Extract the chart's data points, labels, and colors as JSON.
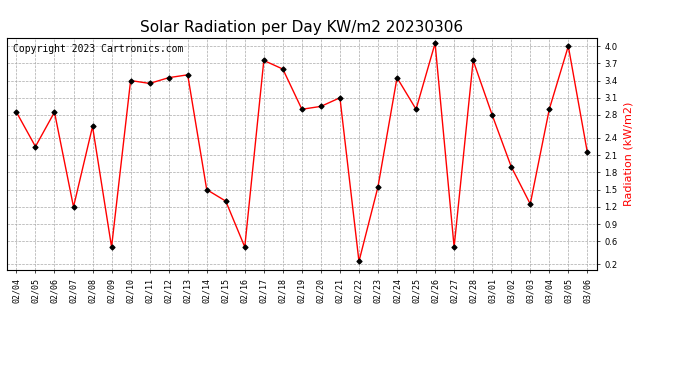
{
  "title": "Solar Radiation per Day KW/m2 20230306",
  "copyright": "Copyright 2023 Cartronics.com",
  "ylabel": "Radiation (kW/m2)",
  "dates": [
    "02/04",
    "02/05",
    "02/06",
    "02/07",
    "02/08",
    "02/09",
    "02/10",
    "02/11",
    "02/12",
    "02/13",
    "02/14",
    "02/15",
    "02/16",
    "02/17",
    "02/18",
    "02/19",
    "02/20",
    "02/21",
    "02/22",
    "02/23",
    "02/24",
    "02/25",
    "02/26",
    "02/27",
    "02/28",
    "03/01",
    "03/02",
    "03/03",
    "03/04",
    "03/05",
    "03/06"
  ],
  "values": [
    2.85,
    2.25,
    2.85,
    1.2,
    2.6,
    0.5,
    3.4,
    3.35,
    3.45,
    3.5,
    1.5,
    1.3,
    0.5,
    3.75,
    3.6,
    2.9,
    2.95,
    3.1,
    0.25,
    1.55,
    3.45,
    2.9,
    4.05,
    0.5,
    3.75,
    2.8,
    1.9,
    1.25,
    2.9,
    4.0,
    2.15
  ],
  "ylim": [
    0.1,
    4.15
  ],
  "yticks": [
    0.2,
    0.6,
    0.9,
    1.2,
    1.5,
    1.8,
    2.1,
    2.4,
    2.8,
    3.1,
    3.4,
    3.7,
    4.0
  ],
  "line_color": "red",
  "marker_color": "black",
  "title_fontsize": 11,
  "copyright_fontsize": 7,
  "ylabel_fontsize": 8,
  "tick_fontsize": 6,
  "background_color": "white",
  "grid_color": "#aaaaaa",
  "copyright_color": "black",
  "ylabel_color": "red"
}
